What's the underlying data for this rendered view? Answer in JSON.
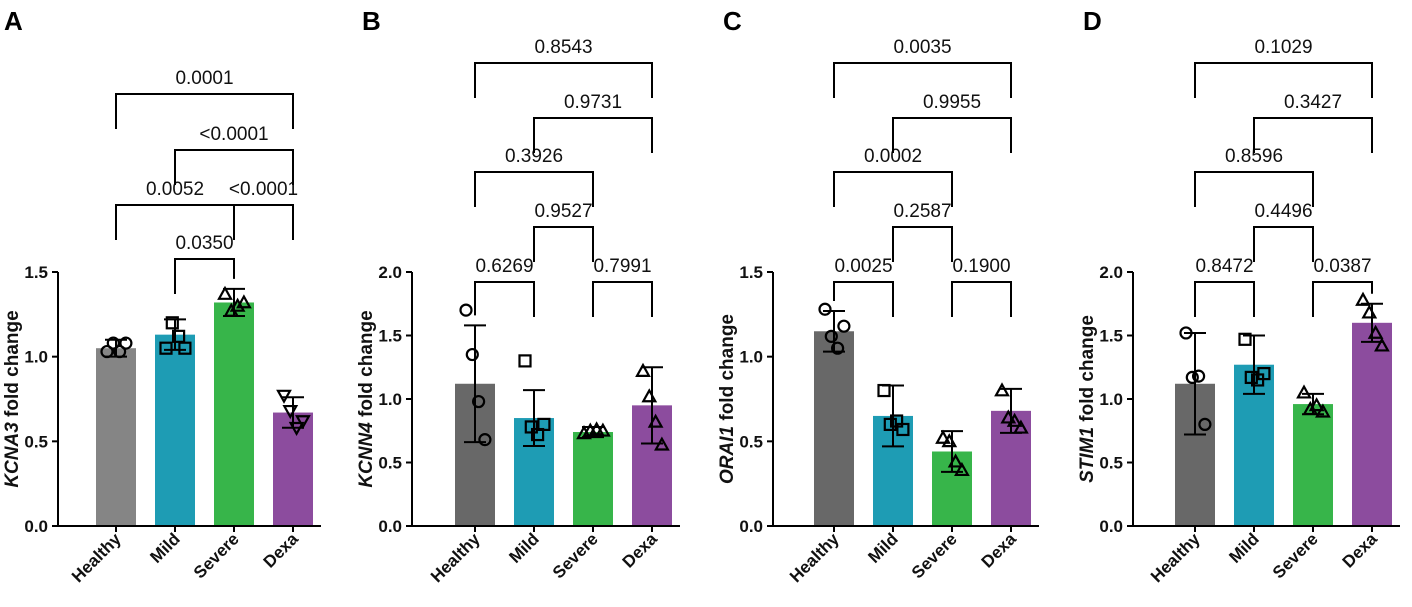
{
  "chart_data": [
    {
      "panel": "A",
      "type": "bar",
      "ylabel_gene": "KCNA3",
      "ylabel_suffix": " fold change",
      "categories": [
        "Healthy",
        "Mild",
        "Severe",
        "Dexa"
      ],
      "colors": [
        "#858585",
        "#1e9cb4",
        "#37b54a",
        "#8c4c9e"
      ],
      "markers": [
        "circle",
        "square",
        "triangle",
        "triangle-down"
      ],
      "means": [
        1.05,
        1.13,
        1.32,
        0.67
      ],
      "sd": [
        0.05,
        0.09,
        0.08,
        0.09
      ],
      "points": [
        [
          1.03,
          1.08,
          1.03,
          1.08
        ],
        [
          1.05,
          1.2,
          1.12,
          1.05
        ],
        [
          1.37,
          1.27,
          1.3,
          1.32
        ],
        [
          0.77,
          0.68,
          0.58,
          0.62
        ]
      ],
      "ylim": [
        0,
        1.5
      ],
      "yticks": [
        "0.0",
        "0.5",
        "1.0",
        "1.5"
      ],
      "comparisons": [
        {
          "from": 2,
          "to": 3,
          "label": "0.0350",
          "level": 0
        },
        {
          "from": 1,
          "to": 3,
          "label": "0.0052",
          "level": 1
        },
        {
          "from": 3,
          "to": 4,
          "label": "<0.0001",
          "level": 1
        },
        {
          "from": 2,
          "to": 4,
          "label": "<0.0001",
          "level": 2
        },
        {
          "from": 1,
          "to": 4,
          "label": "0.0001",
          "level": 3
        }
      ]
    },
    {
      "panel": "B",
      "type": "bar",
      "ylabel_gene": "KCNN4",
      "ylabel_suffix": " fold change",
      "categories": [
        "Healthy",
        "Mild",
        "Severe",
        "Dexa"
      ],
      "colors": [
        "#686868",
        "#1e9cb4",
        "#37b54a",
        "#8c4c9e"
      ],
      "markers": [
        "circle",
        "square",
        "triangle",
        "triangle"
      ],
      "means": [
        1.12,
        0.85,
        0.74,
        0.95
      ],
      "sd": [
        0.46,
        0.22,
        0.04,
        0.3
      ],
      "points": [
        [
          1.7,
          1.35,
          0.98,
          0.68
        ],
        [
          1.3,
          0.78,
          0.72,
          0.8
        ],
        [
          0.73,
          0.75,
          0.76,
          0.75
        ],
        [
          1.22,
          1.02,
          0.82,
          0.64
        ]
      ],
      "ylim": [
        0,
        2.0
      ],
      "yticks": [
        "0.0",
        "0.5",
        "1.0",
        "1.5",
        "2.0"
      ],
      "comparisons": [
        {
          "from": 1,
          "to": 2,
          "label": "0.6269",
          "level": 0
        },
        {
          "from": 3,
          "to": 4,
          "label": "0.7991",
          "level": 0
        },
        {
          "from": 2,
          "to": 3,
          "label": "0.9527",
          "level": 1
        },
        {
          "from": 1,
          "to": 3,
          "label": "0.3926",
          "level": 2
        },
        {
          "from": 2,
          "to": 4,
          "label": "0.9731",
          "level": 3
        },
        {
          "from": 1,
          "to": 4,
          "label": "0.8543",
          "level": 4
        }
      ]
    },
    {
      "panel": "C",
      "type": "bar",
      "ylabel_gene": "ORAI1",
      "ylabel_suffix": " fold change",
      "categories": [
        "Healthy",
        "Mild",
        "Severe",
        "Dexa"
      ],
      "colors": [
        "#686868",
        "#1e9cb4",
        "#37b54a",
        "#8c4c9e"
      ],
      "markers": [
        "circle",
        "square",
        "triangle",
        "triangle"
      ],
      "means": [
        1.15,
        0.65,
        0.44,
        0.68
      ],
      "sd": [
        0.12,
        0.18,
        0.12,
        0.13
      ],
      "points": [
        [
          1.28,
          1.12,
          1.05,
          1.18
        ],
        [
          0.8,
          0.6,
          0.62,
          0.57
        ],
        [
          0.52,
          0.5,
          0.38,
          0.33
        ],
        [
          0.8,
          0.64,
          0.62,
          0.58
        ]
      ],
      "ylim": [
        0,
        1.5
      ],
      "yticks": [
        "0.0",
        "0.5",
        "1.0",
        "1.5"
      ],
      "comparisons": [
        {
          "from": 1,
          "to": 2,
          "label": "0.0025",
          "level": 0
        },
        {
          "from": 3,
          "to": 4,
          "label": "0.1900",
          "level": 0
        },
        {
          "from": 2,
          "to": 3,
          "label": "0.2587",
          "level": 1
        },
        {
          "from": 1,
          "to": 3,
          "label": "0.0002",
          "level": 2
        },
        {
          "from": 2,
          "to": 4,
          "label": "0.9955",
          "level": 3
        },
        {
          "from": 1,
          "to": 4,
          "label": "0.0035",
          "level": 4
        }
      ]
    },
    {
      "panel": "D",
      "type": "bar",
      "ylabel_gene": "STIM1",
      "ylabel_suffix": " fold change",
      "categories": [
        "Healthy",
        "Mild",
        "Severe",
        "Dexa"
      ],
      "colors": [
        "#686868",
        "#1e9cb4",
        "#37b54a",
        "#8c4c9e"
      ],
      "markers": [
        "circle",
        "square",
        "triangle",
        "triangle"
      ],
      "means": [
        1.12,
        1.27,
        0.96,
        1.6
      ],
      "sd": [
        0.4,
        0.23,
        0.08,
        0.15
      ],
      "points": [
        [
          1.52,
          1.17,
          1.18,
          0.8
        ],
        [
          1.47,
          1.17,
          1.15,
          1.2
        ],
        [
          1.05,
          0.92,
          0.95,
          0.9
        ],
        [
          1.78,
          1.68,
          1.52,
          1.42
        ]
      ],
      "ylim": [
        0,
        2.0
      ],
      "yticks": [
        "0.0",
        "0.5",
        "1.0",
        "1.5",
        "2.0"
      ],
      "comparisons": [
        {
          "from": 1,
          "to": 2,
          "label": "0.8472",
          "level": 0
        },
        {
          "from": 3,
          "to": 4,
          "label": "0.0387",
          "level": 0
        },
        {
          "from": 2,
          "to": 3,
          "label": "0.4496",
          "level": 1
        },
        {
          "from": 1,
          "to": 3,
          "label": "0.8596",
          "level": 2
        },
        {
          "from": 2,
          "to": 4,
          "label": "0.3427",
          "level": 3
        },
        {
          "from": 1,
          "to": 4,
          "label": "0.1029",
          "level": 4
        }
      ]
    }
  ]
}
